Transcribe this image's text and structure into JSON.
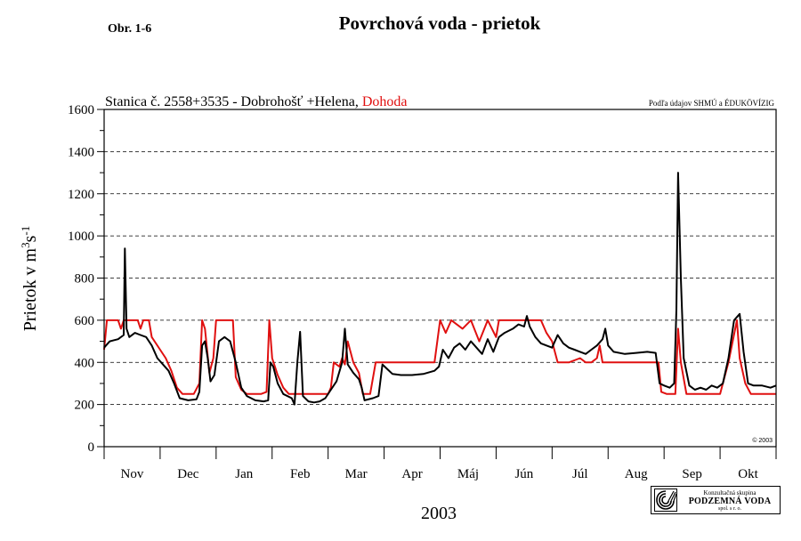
{
  "figure_label": "Obr. 1-6",
  "copyright": "© 2003",
  "source_note": "Podľa údajov SHMÚ a ÉDUKÖVÍZIG",
  "station": {
    "main": "Stanica č. 2558+3535 - Dobrohošť +Helena, ",
    "highlight": "Dohoda"
  },
  "logo": {
    "line1": "Konzultačná skupina",
    "line2": "PODZEMNÁ VODA",
    "line3": "spol. s r. o."
  },
  "colors": {
    "measured": "#000000",
    "agreement": "#e01010"
  },
  "chart_data": {
    "type": "line",
    "title": "Povrchová voda - prietok",
    "xlabel": "2003",
    "ylabel": {
      "main": "Prietok v m",
      "sup1": "3",
      "mid": "s",
      "sup2": "-1"
    },
    "ylim": [
      0,
      1600
    ],
    "yticks": [
      0,
      200,
      400,
      600,
      800,
      1000,
      1200,
      1400,
      1600
    ],
    "dashed_grid": [
      200,
      400,
      600,
      800,
      1000,
      1200,
      1400
    ],
    "months": [
      "Nov",
      "Dec",
      "Jan",
      "Feb",
      "Mar",
      "Apr",
      "Máj",
      "Jún",
      "Júl",
      "Aug",
      "Sep",
      "Okt"
    ],
    "x_unit": "months from 1 Nov 2002",
    "series": [
      {
        "name": "Stanica č. 2558+3535 - Dobrohošť +Helena",
        "color": "#000000",
        "points": [
          [
            0,
            470
          ],
          [
            0.1,
            500
          ],
          [
            0.25,
            510
          ],
          [
            0.35,
            530
          ],
          [
            0.37,
            940
          ],
          [
            0.4,
            560
          ],
          [
            0.45,
            520
          ],
          [
            0.55,
            540
          ],
          [
            0.65,
            530
          ],
          [
            0.75,
            520
          ],
          [
            0.85,
            480
          ],
          [
            0.95,
            420
          ],
          [
            1.05,
            390
          ],
          [
            1.15,
            360
          ],
          [
            1.25,
            300
          ],
          [
            1.35,
            230
          ],
          [
            1.5,
            220
          ],
          [
            1.65,
            225
          ],
          [
            1.7,
            260
          ],
          [
            1.75,
            480
          ],
          [
            1.8,
            500
          ],
          [
            1.85,
            420
          ],
          [
            1.9,
            310
          ],
          [
            1.97,
            340
          ],
          [
            2.05,
            500
          ],
          [
            2.15,
            520
          ],
          [
            2.25,
            500
          ],
          [
            2.35,
            400
          ],
          [
            2.45,
            280
          ],
          [
            2.55,
            240
          ],
          [
            2.7,
            220
          ],
          [
            2.85,
            215
          ],
          [
            2.93,
            220
          ],
          [
            2.97,
            400
          ],
          [
            3.02,
            380
          ],
          [
            3.1,
            300
          ],
          [
            3.2,
            250
          ],
          [
            3.35,
            230
          ],
          [
            3.4,
            200
          ],
          [
            3.45,
            400
          ],
          [
            3.5,
            545
          ],
          [
            3.55,
            240
          ],
          [
            3.65,
            215
          ],
          [
            3.75,
            210
          ],
          [
            3.85,
            215
          ],
          [
            3.95,
            230
          ],
          [
            4.05,
            270
          ],
          [
            4.15,
            310
          ],
          [
            4.25,
            400
          ],
          [
            4.3,
            560
          ],
          [
            4.35,
            390
          ],
          [
            4.45,
            350
          ],
          [
            4.55,
            320
          ],
          [
            4.6,
            280
          ],
          [
            4.65,
            220
          ],
          [
            4.8,
            230
          ],
          [
            4.9,
            240
          ],
          [
            4.97,
            390
          ],
          [
            5.05,
            370
          ],
          [
            5.15,
            345
          ],
          [
            5.3,
            340
          ],
          [
            5.5,
            340
          ],
          [
            5.7,
            345
          ],
          [
            5.9,
            360
          ],
          [
            5.98,
            380
          ],
          [
            6.05,
            460
          ],
          [
            6.15,
            420
          ],
          [
            6.25,
            470
          ],
          [
            6.35,
            490
          ],
          [
            6.45,
            460
          ],
          [
            6.55,
            500
          ],
          [
            6.65,
            470
          ],
          [
            6.75,
            440
          ],
          [
            6.85,
            510
          ],
          [
            6.95,
            450
          ],
          [
            7.05,
            520
          ],
          [
            7.15,
            540
          ],
          [
            7.3,
            560
          ],
          [
            7.4,
            580
          ],
          [
            7.5,
            570
          ],
          [
            7.55,
            620
          ],
          [
            7.6,
            570
          ],
          [
            7.7,
            520
          ],
          [
            7.8,
            490
          ],
          [
            7.9,
            480
          ],
          [
            8,
            470
          ],
          [
            8.1,
            530
          ],
          [
            8.2,
            490
          ],
          [
            8.3,
            470
          ],
          [
            8.4,
            460
          ],
          [
            8.5,
            450
          ],
          [
            8.6,
            440
          ],
          [
            8.7,
            460
          ],
          [
            8.8,
            480
          ],
          [
            8.9,
            510
          ],
          [
            8.95,
            560
          ],
          [
            9,
            480
          ],
          [
            9.1,
            450
          ],
          [
            9.3,
            440
          ],
          [
            9.5,
            445
          ],
          [
            9.7,
            450
          ],
          [
            9.85,
            445
          ],
          [
            9.92,
            300
          ],
          [
            10.0,
            290
          ],
          [
            10.1,
            280
          ],
          [
            10.18,
            300
          ],
          [
            10.22,
            650
          ],
          [
            10.25,
            1300
          ],
          [
            10.3,
            800
          ],
          [
            10.35,
            420
          ],
          [
            10.45,
            290
          ],
          [
            10.55,
            270
          ],
          [
            10.65,
            280
          ],
          [
            10.75,
            270
          ],
          [
            10.85,
            290
          ],
          [
            10.95,
            280
          ],
          [
            11.05,
            300
          ],
          [
            11.15,
            420
          ],
          [
            11.25,
            600
          ],
          [
            11.35,
            630
          ],
          [
            11.42,
            450
          ],
          [
            11.5,
            300
          ],
          [
            11.6,
            290
          ],
          [
            11.75,
            290
          ],
          [
            11.9,
            280
          ],
          [
            12.0,
            290
          ]
        ]
      },
      {
        "name": "Dohoda",
        "color": "#e01010",
        "points": [
          [
            0,
            460
          ],
          [
            0.05,
            600
          ],
          [
            0.25,
            600
          ],
          [
            0.3,
            560
          ],
          [
            0.35,
            600
          ],
          [
            0.6,
            600
          ],
          [
            0.65,
            560
          ],
          [
            0.7,
            600
          ],
          [
            0.8,
            600
          ],
          [
            0.85,
            520
          ],
          [
            1.0,
            460
          ],
          [
            1.1,
            420
          ],
          [
            1.2,
            360
          ],
          [
            1.3,
            280
          ],
          [
            1.4,
            250
          ],
          [
            1.6,
            250
          ],
          [
            1.7,
            300
          ],
          [
            1.75,
            600
          ],
          [
            1.8,
            560
          ],
          [
            1.88,
            350
          ],
          [
            1.95,
            420
          ],
          [
            2.0,
            600
          ],
          [
            2.3,
            600
          ],
          [
            2.35,
            330
          ],
          [
            2.45,
            270
          ],
          [
            2.55,
            250
          ],
          [
            2.8,
            250
          ],
          [
            2.9,
            260
          ],
          [
            2.95,
            600
          ],
          [
            3.0,
            420
          ],
          [
            3.1,
            340
          ],
          [
            3.2,
            280
          ],
          [
            3.3,
            250
          ],
          [
            3.8,
            250
          ],
          [
            4.0,
            250
          ],
          [
            4.05,
            280
          ],
          [
            4.1,
            400
          ],
          [
            4.2,
            380
          ],
          [
            4.25,
            420
          ],
          [
            4.3,
            390
          ],
          [
            4.35,
            500
          ],
          [
            4.45,
            400
          ],
          [
            4.55,
            350
          ],
          [
            4.62,
            250
          ],
          [
            4.75,
            250
          ],
          [
            4.85,
            400
          ],
          [
            4.95,
            400
          ],
          [
            5.0,
            400
          ],
          [
            5.5,
            400
          ],
          [
            5.9,
            400
          ],
          [
            6.0,
            600
          ],
          [
            6.1,
            540
          ],
          [
            6.2,
            600
          ],
          [
            6.4,
            560
          ],
          [
            6.55,
            600
          ],
          [
            6.7,
            500
          ],
          [
            6.85,
            600
          ],
          [
            7.0,
            520
          ],
          [
            7.05,
            600
          ],
          [
            7.8,
            600
          ],
          [
            7.9,
            540
          ],
          [
            8.0,
            500
          ],
          [
            8.1,
            400
          ],
          [
            8.3,
            400
          ],
          [
            8.5,
            420
          ],
          [
            8.6,
            400
          ],
          [
            8.7,
            400
          ],
          [
            8.8,
            420
          ],
          [
            8.85,
            480
          ],
          [
            8.9,
            400
          ],
          [
            9.0,
            400
          ],
          [
            9.5,
            400
          ],
          [
            9.9,
            400
          ],
          [
            9.95,
            260
          ],
          [
            10.05,
            250
          ],
          [
            10.2,
            250
          ],
          [
            10.25,
            560
          ],
          [
            10.3,
            400
          ],
          [
            10.4,
            250
          ],
          [
            10.6,
            250
          ],
          [
            11.0,
            250
          ],
          [
            11.05,
            300
          ],
          [
            11.15,
            400
          ],
          [
            11.3,
            600
          ],
          [
            11.35,
            420
          ],
          [
            11.45,
            300
          ],
          [
            11.55,
            250
          ],
          [
            12.0,
            250
          ]
        ]
      }
    ]
  }
}
